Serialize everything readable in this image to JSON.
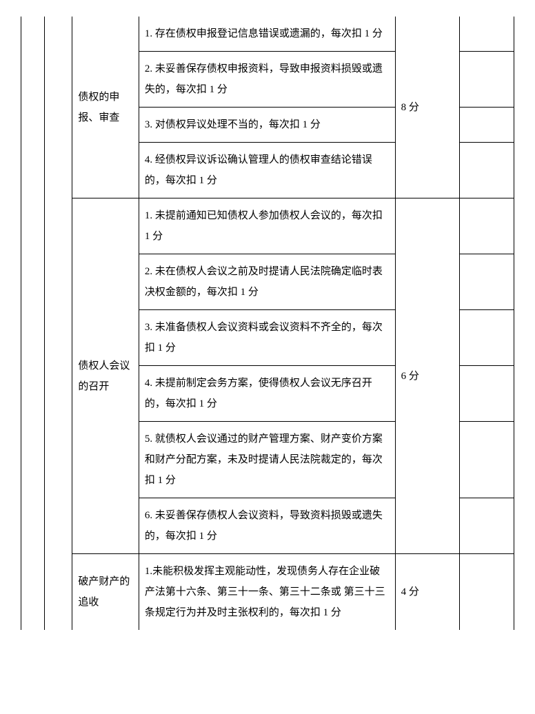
{
  "sections": [
    {
      "category": "债权的申报、审查",
      "score": "8 分",
      "items": [
        "1. 存在债权申报登记信息错误或遗漏的，每次扣 1 分",
        "2. 未妥善保存债权申报资料，导致申报资料损毁或遗失的，每次扣 1 分",
        "3. 对债权异议处理不当的，每次扣 1 分",
        "4. 经债权异议诉讼确认管理人的债权审查结论错误的，每次扣 1 分"
      ]
    },
    {
      "category": "债权人会议的召开",
      "score": "6 分",
      "items": [
        "1. 未提前通知已知债权人参加债权人会议的，每次扣 1 分",
        "2. 未在债权人会议之前及时提请人民法院确定临时表决权金额的，每次扣 1 分",
        "3. 未准备债权人会议资料或会议资料不齐全的，每次扣 1 分",
        "4. 未提前制定会务方案，使得债权人会议无序召开的，每次扣 1 分",
        "5. 就债权人会议通过的财产管理方案、财产变价方案和财产分配方案，未及时提请人民法院裁定的，每次扣 1 分",
        "6. 未妥善保存债权人会议资料，导致资料损毁或遗失的，每次扣 1 分"
      ]
    },
    {
      "category": "破产财产的追收",
      "score": "4 分",
      "items": [
        "1.未能积极发挥主观能动性，发现债务人存在企业破产法第十六条、第三十一条、第三十二条或 第三十三条规定行为并及时主张权利的，每次扣 1 分"
      ]
    }
  ]
}
